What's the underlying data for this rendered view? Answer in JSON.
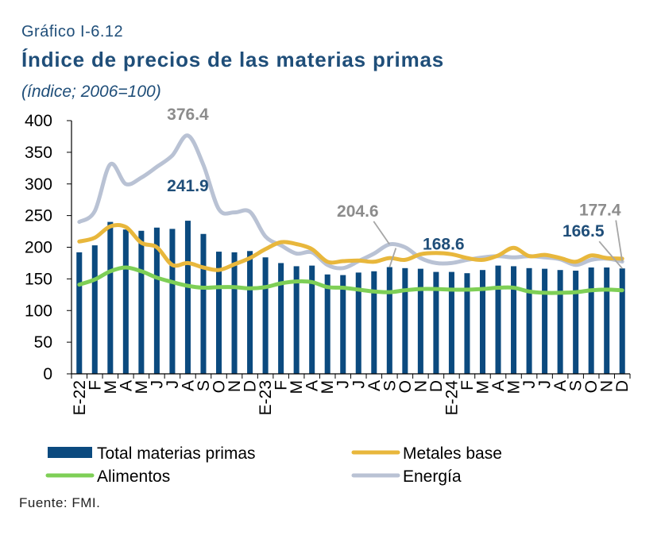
{
  "header": {
    "label": "Gráfico I-6.12",
    "title": "Índice de precios de las materias primas",
    "subtitle": "(índice; 2006=100)"
  },
  "source": "Fuente: FMI.",
  "colors": {
    "total": "#0b4a7f",
    "metales": "#e8b73c",
    "alimentos": "#7ecf56",
    "energia": "#b9c2d4",
    "label_blue": "#1f4e79",
    "label_gray": "#8c8c8c"
  },
  "chart_data": {
    "type": "bar",
    "ylim": [
      0,
      400
    ],
    "yticks": [
      "0",
      "50",
      "100",
      "150",
      "200",
      "250",
      "300",
      "350",
      "400"
    ],
    "categories": [
      "E-22",
      "F",
      "M",
      "A",
      "M",
      "J",
      "J",
      "A",
      "S",
      "O",
      "N",
      "D",
      "E-23",
      "F",
      "M",
      "A",
      "M",
      "J",
      "J",
      "A",
      "S",
      "O",
      "N",
      "D",
      "E-24",
      "F",
      "M",
      "A",
      "M",
      "J",
      "J",
      "A",
      "S",
      "O",
      "N",
      "D"
    ],
    "series": [
      {
        "name": "Total materias primas",
        "kind": "bar",
        "values": [
          192,
          203,
          240,
          228,
          226,
          231,
          229,
          241.9,
          221,
          193,
          192,
          194,
          184,
          175,
          170,
          171,
          157,
          156,
          160,
          162,
          168.6,
          167,
          166,
          161,
          161,
          159,
          164,
          171,
          170,
          167,
          166,
          164,
          163,
          168,
          168,
          166.5
        ]
      },
      {
        "name": "Metales base",
        "kind": "line",
        "values": [
          209,
          215,
          233,
          232,
          207,
          200,
          172,
          175,
          168,
          164,
          173,
          183,
          197,
          208,
          205,
          197,
          177,
          178,
          179,
          177,
          183,
          180,
          189,
          191,
          189,
          183,
          180,
          187,
          199,
          186,
          188,
          183,
          177,
          187,
          183,
          182
        ]
      },
      {
        "name": "Alimentos",
        "kind": "line",
        "values": [
          141,
          149,
          162,
          168,
          162,
          152,
          145,
          139,
          136,
          137,
          137,
          135,
          137,
          143,
          146,
          145,
          137,
          136,
          133,
          130,
          129,
          132,
          134,
          134,
          133,
          133,
          134,
          136,
          136,
          130,
          128,
          128,
          129,
          132,
          133,
          132
        ]
      },
      {
        "name": "Energía",
        "kind": "line",
        "values": [
          240,
          257,
          331,
          300,
          310,
          327,
          345,
          376.4,
          330,
          260,
          255,
          256,
          217,
          203,
          190,
          192,
          172,
          167,
          178,
          190,
          204.6,
          200,
          183,
          175,
          175,
          180,
          184,
          186,
          184,
          186,
          184,
          181,
          172,
          180,
          182,
          177.4
        ]
      }
    ],
    "annotations": [
      {
        "text": "376.4",
        "series": "Energía",
        "index": 7,
        "color": "gray"
      },
      {
        "text": "241.9",
        "series": "Total materias primas",
        "index": 7,
        "color": "blue"
      },
      {
        "text": "204.6",
        "series": "Energía",
        "index": 20,
        "color": "gray"
      },
      {
        "text": "168.6",
        "series": "Total materias primas",
        "index": 20,
        "color": "blue"
      },
      {
        "text": "177.4",
        "series": "Energía",
        "index": 35,
        "color": "gray"
      },
      {
        "text": "166.5",
        "series": "Total materias primas",
        "index": 35,
        "color": "blue"
      }
    ],
    "legend": [
      {
        "label": "Total materias primas",
        "series": "Total materias primas"
      },
      {
        "label": "Metales base",
        "series": "Metales base"
      },
      {
        "label": "Alimentos",
        "series": "Alimentos"
      },
      {
        "label": "Energía",
        "series": "Energía"
      }
    ]
  }
}
